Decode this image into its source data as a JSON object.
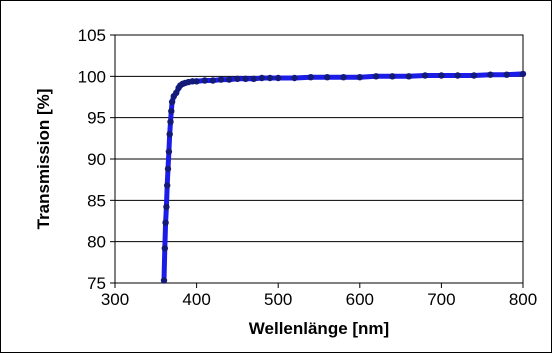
{
  "chart_data": {
    "type": "scatter",
    "title": "",
    "xlabel": "Wellenlänge [nm]",
    "ylabel": "Transmission [%]",
    "xlim": [
      300,
      800
    ],
    "ylim": [
      75,
      105
    ],
    "xticks": [
      "300",
      "400",
      "500",
      "600",
      "700",
      "800"
    ],
    "yticks": [
      "75",
      "80",
      "85",
      "90",
      "95",
      "100",
      "105"
    ],
    "grid": "horizontal",
    "legend": "none",
    "colors": {
      "line": "#1c1ce8",
      "marker": "#141a78",
      "grid": "#000000"
    },
    "series": [
      {
        "x": [
          360,
          361,
          362,
          363,
          364,
          365,
          366,
          367,
          368,
          369,
          370,
          372,
          375,
          378,
          380,
          383,
          386,
          390,
          395,
          400,
          410,
          420,
          430,
          440,
          450,
          460,
          470,
          480,
          490,
          500,
          520,
          540,
          560,
          580,
          600,
          620,
          640,
          660,
          680,
          700,
          720,
          740,
          760,
          780,
          800
        ],
        "y": [
          75.3,
          79.2,
          82.3,
          84.2,
          86.8,
          88.8,
          90.9,
          93.0,
          94.5,
          95.8,
          96.9,
          97.6,
          98.0,
          98.6,
          98.9,
          99.1,
          99.2,
          99.3,
          99.4,
          99.4,
          99.5,
          99.5,
          99.6,
          99.6,
          99.7,
          99.7,
          99.7,
          99.8,
          99.8,
          99.8,
          99.8,
          99.9,
          99.9,
          99.9,
          99.9,
          100.0,
          100.0,
          100.0,
          100.1,
          100.1,
          100.1,
          100.1,
          100.2,
          100.2,
          100.3
        ]
      }
    ]
  }
}
